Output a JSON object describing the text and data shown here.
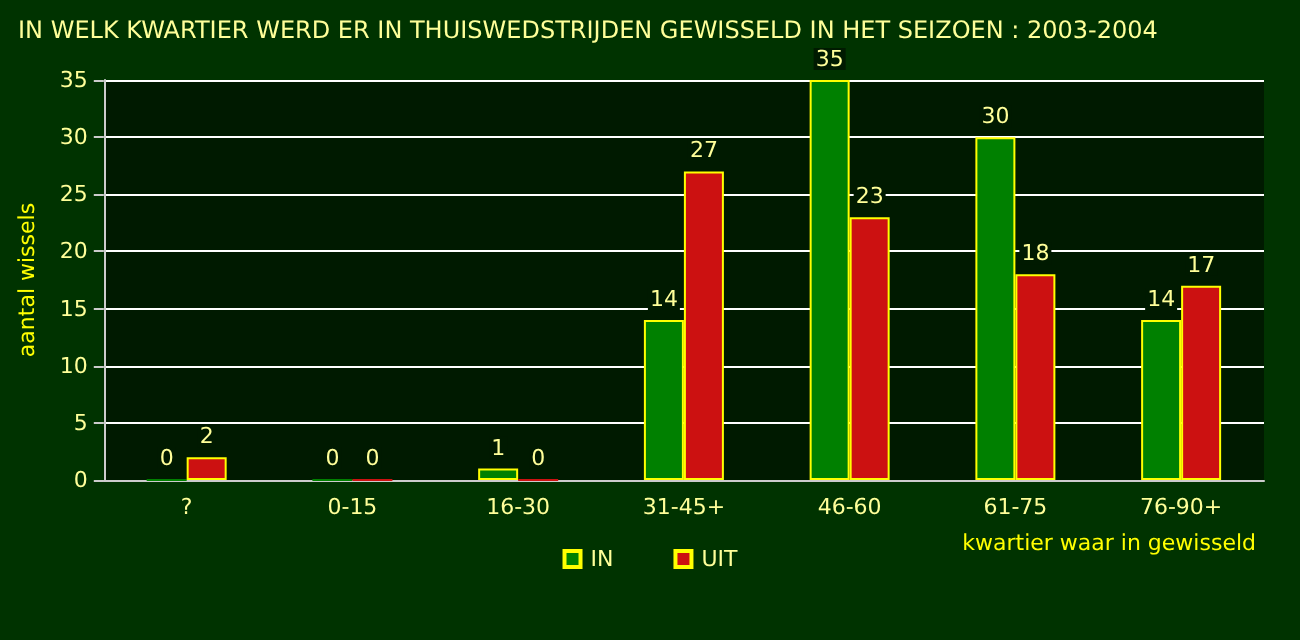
{
  "chart_data": {
    "type": "bar",
    "title": "IN WELK KWARTIER WERD ER IN THUISWEDSTRIJDEN GEWISSELD IN HET SEIZOEN : 2003-2004",
    "xlabel": "kwartier waar in gewisseld",
    "ylabel": "aantal wissels",
    "categories": [
      "?",
      "0-15",
      "16-30",
      "31-45+",
      "46-60",
      "61-75",
      "76-90+"
    ],
    "series": [
      {
        "name": "IN",
        "color": "#008000",
        "values": [
          0,
          0,
          1,
          14,
          35,
          30,
          14
        ]
      },
      {
        "name": "UIT",
        "color": "#cc1111",
        "values": [
          2,
          0,
          0,
          27,
          23,
          18,
          17
        ]
      }
    ],
    "ylim": [
      0,
      35
    ],
    "yticks": [
      0,
      5,
      10,
      15,
      20,
      25,
      30,
      35
    ],
    "grid": "y",
    "legend": "bottom",
    "data_labels": true
  }
}
